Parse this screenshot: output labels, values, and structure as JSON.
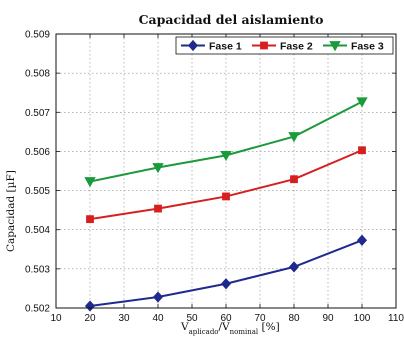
{
  "chart_data": {
    "type": "line",
    "title": "Capacidad del aislamiento",
    "ylabel": "Capacidad [µF]",
    "xlabel": {
      "main": "V",
      "sub1": "aplicado",
      "mid": "/V",
      "sub2": "nominal",
      "unit": " [%]"
    },
    "xlim": [
      10,
      110
    ],
    "ylim": [
      0.502,
      0.509
    ],
    "xticks": [
      10,
      20,
      30,
      40,
      50,
      60,
      70,
      80,
      90,
      100,
      110
    ],
    "yticks": [
      "0.502",
      "0.503",
      "0.504",
      "0.505",
      "0.506",
      "0.507",
      "0.508",
      "0.509"
    ],
    "grid": true,
    "legend": "top-right",
    "x": [
      20,
      40,
      60,
      80,
      100
    ],
    "series": [
      {
        "name": "Fase 1",
        "color": "#1f2a8f",
        "marker": "diamond",
        "values": [
          0.50205,
          0.50228,
          0.50262,
          0.50305,
          0.50373
        ]
      },
      {
        "name": "Fase 2",
        "color": "#d62020",
        "marker": "square",
        "values": [
          0.50427,
          0.50454,
          0.50485,
          0.50529,
          0.50603
        ]
      },
      {
        "name": "Fase 3",
        "color": "#1a9a3a",
        "marker": "triangle-down",
        "values": [
          0.50523,
          0.50559,
          0.5059,
          0.50638,
          0.50727
        ]
      }
    ]
  }
}
